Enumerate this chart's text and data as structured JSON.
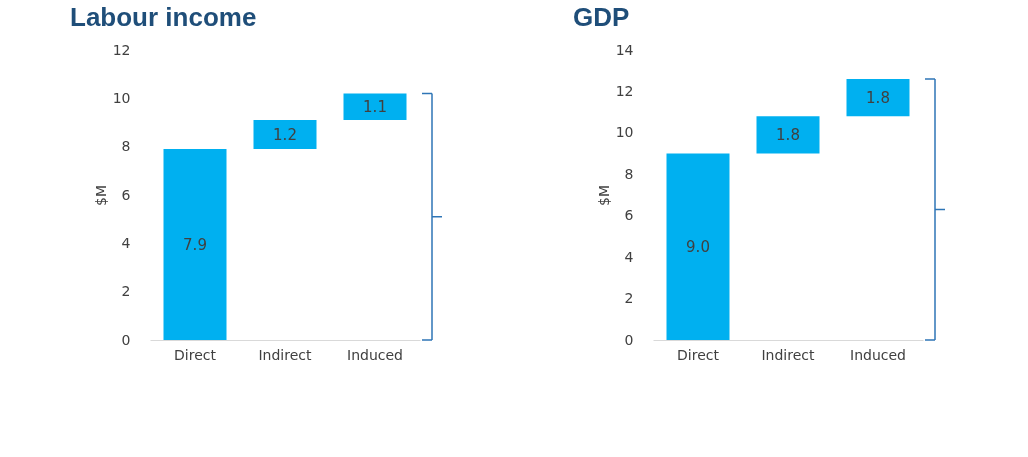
{
  "chart_data": [
    {
      "type": "bar",
      "title": "Labour income",
      "ylabel": "$M",
      "categories": [
        "Direct",
        "Indirect",
        "Induced"
      ],
      "values": [
        7.9,
        1.2,
        1.1
      ],
      "base": [
        0,
        7.9,
        9.1
      ],
      "value_labels": [
        "7.9",
        "1.2",
        "1.1"
      ],
      "color": "#00b0f0",
      "ylim": [
        0,
        12
      ],
      "yticks": [
        0,
        2,
        4,
        6,
        8,
        10,
        12
      ],
      "grid": false
    },
    {
      "type": "bar",
      "title": "GDP",
      "ylabel": "$M",
      "categories": [
        "Direct",
        "Indirect",
        "Induced"
      ],
      "values": [
        9.0,
        1.8,
        1.8
      ],
      "base": [
        0,
        9.0,
        10.8
      ],
      "value_labels": [
        "9.0",
        "1.8",
        "1.8"
      ],
      "color": "#00b0f0",
      "ylim": [
        0,
        14
      ],
      "yticks": [
        0,
        2,
        4,
        6,
        8,
        10,
        12,
        14
      ],
      "grid": false
    }
  ]
}
